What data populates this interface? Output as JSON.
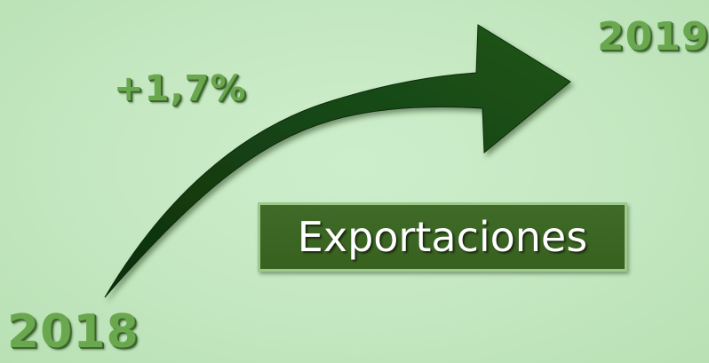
{
  "slide": {
    "start_year": "2018",
    "end_year": "2019",
    "change": "+1,7%",
    "label": "Exportaciones"
  },
  "colors": {
    "background": "#c6e9c3",
    "arrow": "#174614",
    "year_text": "#6aa84f",
    "label_box": "#3f6a28",
    "label_border": "#9cc98b"
  },
  "icons": {
    "arrow": "curved-up-arrow-icon"
  }
}
